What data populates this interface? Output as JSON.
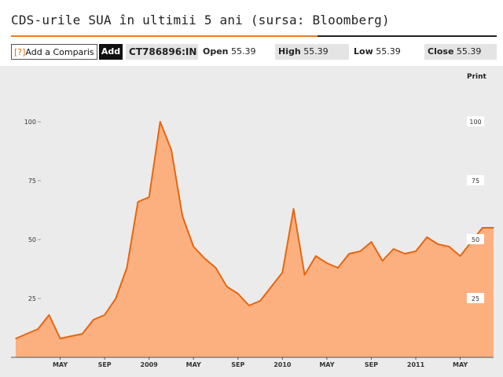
{
  "title": "CDS-urile SUA în ultimii 5 ani (sursa: Bloomberg)",
  "toolbar": {
    "compare_prefix": "[?]",
    "compare_placeholder": "Add a Comparis",
    "add_label": "Add",
    "ticker": "CT786896:IN",
    "open_label": "Open",
    "open_value": "55.39",
    "high_label": "High",
    "high_value": "55.39",
    "low_label": "Low",
    "low_value": "55.39",
    "close_label": "Close",
    "close_value": "55.39"
  },
  "print_label": "Print",
  "colors": {
    "line": "#e8650f",
    "fill": "#fdb07f",
    "background": "#ebebeb",
    "accent": "#f07a20"
  },
  "chart_data": {
    "type": "area",
    "y_ticks": [
      100,
      75,
      50,
      25
    ],
    "y_tick_labels": [
      "100",
      "75",
      "50",
      "25"
    ],
    "x_tick_labels": [
      "MAY",
      "SEP",
      "2009",
      "MAY",
      "SEP",
      "2010",
      "MAY",
      "SEP",
      "2011",
      "MAY"
    ],
    "x_tick_dates": [
      "2008-05",
      "2008-09",
      "2009-01",
      "2009-05",
      "2009-09",
      "2010-01",
      "2010-05",
      "2010-09",
      "2011-01",
      "2011-05"
    ],
    "x_range": [
      "2008-01",
      "2011-08"
    ],
    "ylim": [
      0,
      110
    ],
    "grid": false,
    "series": [
      {
        "x": [
          "2008-01",
          "2008-02",
          "2008-03",
          "2008-04",
          "2008-05",
          "2008-06",
          "2008-07",
          "2008-08",
          "2008-09",
          "2008-10",
          "2008-11",
          "2008-12",
          "2009-01",
          "2009-02",
          "2009-03",
          "2009-04",
          "2009-05",
          "2009-06",
          "2009-07",
          "2009-08",
          "2009-09",
          "2009-10",
          "2009-11",
          "2009-12",
          "2010-01",
          "2010-02",
          "2010-03",
          "2010-04",
          "2010-05",
          "2010-06",
          "2010-07",
          "2010-08",
          "2010-09",
          "2010-10",
          "2010-11",
          "2010-12",
          "2011-01",
          "2011-02",
          "2011-03",
          "2011-04",
          "2011-05",
          "2011-06",
          "2011-07",
          "2011-08"
        ],
        "y": [
          8,
          10,
          12,
          18,
          8,
          9,
          10,
          16,
          18,
          25,
          38,
          66,
          68,
          100,
          88,
          60,
          47,
          42,
          38,
          30,
          27,
          22,
          24,
          30,
          36,
          63,
          35,
          43,
          40,
          38,
          44,
          45,
          49,
          41,
          46,
          44,
          45,
          51,
          48,
          47,
          43,
          49,
          55,
          55
        ]
      }
    ]
  }
}
